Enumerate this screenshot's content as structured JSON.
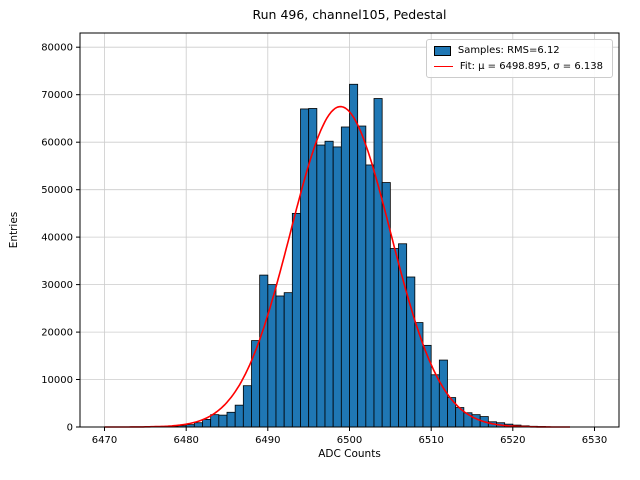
{
  "title": "Run 496, channel105, Pedestal",
  "chart_data": {
    "type": "bar",
    "subtype": "histogram-with-gaussian-fit",
    "title": "Run 496, channel105, Pedestal",
    "xlabel": "ADC Counts",
    "ylabel": "Entries",
    "xlim": [
      6467,
      6533
    ],
    "ylim": [
      0,
      83000
    ],
    "x_ticks": [
      6470,
      6480,
      6490,
      6500,
      6510,
      6520,
      6530
    ],
    "y_ticks": [
      0,
      10000,
      20000,
      30000,
      40000,
      50000,
      60000,
      70000,
      80000
    ],
    "grid": true,
    "legend_position": "upper right",
    "bin_width": 1,
    "bins": [
      [
        6476,
        80
      ],
      [
        6477,
        120
      ],
      [
        6478,
        180
      ],
      [
        6479,
        280
      ],
      [
        6480,
        500
      ],
      [
        6481,
        900
      ],
      [
        6482,
        1600
      ],
      [
        6483,
        2600
      ],
      [
        6484,
        2500
      ],
      [
        6485,
        3100
      ],
      [
        6486,
        4600
      ],
      [
        6487,
        8700
      ],
      [
        6488,
        18200
      ],
      [
        6489,
        32000
      ],
      [
        6490,
        30000
      ],
      [
        6491,
        27600
      ],
      [
        6492,
        28300
      ],
      [
        6493,
        45000
      ],
      [
        6494,
        67000
      ],
      [
        6495,
        67100
      ],
      [
        6496,
        59400
      ],
      [
        6497,
        60200
      ],
      [
        6498,
        59000
      ],
      [
        6499,
        63200
      ],
      [
        6500,
        72200
      ],
      [
        6501,
        63400
      ],
      [
        6502,
        55200
      ],
      [
        6503,
        69200
      ],
      [
        6504,
        51500
      ],
      [
        6505,
        37600
      ],
      [
        6506,
        38600
      ],
      [
        6507,
        31600
      ],
      [
        6508,
        22000
      ],
      [
        6509,
        17200
      ],
      [
        6510,
        11000
      ],
      [
        6511,
        14100
      ],
      [
        6512,
        6200
      ],
      [
        6513,
        4100
      ],
      [
        6514,
        3000
      ],
      [
        6515,
        2600
      ],
      [
        6516,
        2200
      ],
      [
        6517,
        1100
      ],
      [
        6518,
        900
      ],
      [
        6519,
        600
      ],
      [
        6520,
        400
      ],
      [
        6521,
        250
      ],
      [
        6522,
        150
      ],
      [
        6523,
        100
      ],
      [
        6524,
        60
      ],
      [
        6525,
        40
      ],
      [
        6526,
        20
      ]
    ],
    "fit": {
      "type": "gaussian",
      "mu": 6498.895,
      "sigma": 6.138,
      "amplitude": 67500,
      "x_range": [
        6470,
        6527
      ]
    },
    "legend": [
      {
        "label": "Samples: RMS=6.12",
        "marker": "patch",
        "color": "#1f77b4"
      },
      {
        "label": "Fit: μ = 6498.895, σ = 6.138",
        "marker": "line",
        "color": "#ff0000"
      }
    ],
    "colors": {
      "bar_fill": "#1f77b4",
      "bar_edge": "#000000",
      "fit_line": "#ff0000",
      "grid": "#cccccc"
    }
  }
}
